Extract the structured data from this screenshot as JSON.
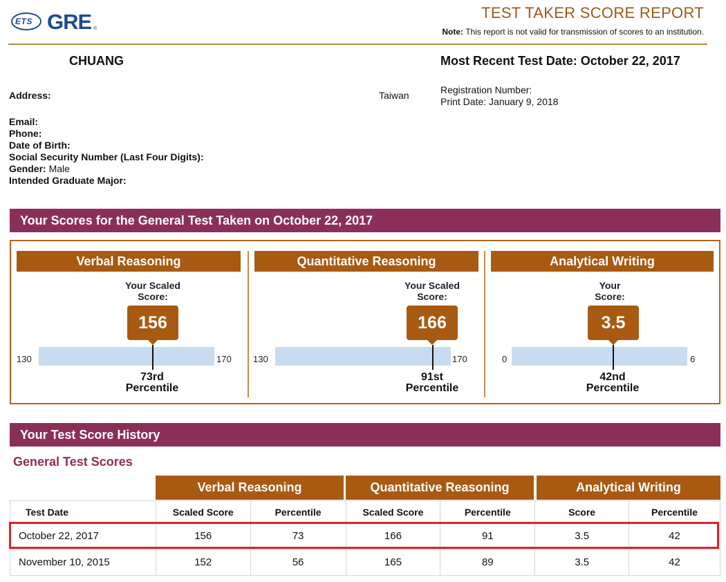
{
  "header": {
    "logo_ets": "ETS",
    "logo_gre": "GRE",
    "logo_tm": "®",
    "report_title": "TEST TAKER SCORE REPORT",
    "note_label": "Note:",
    "note_text": "This report is not valid for transmission of scores to an institution."
  },
  "candidate": {
    "name": "CHUANG",
    "recent_test": "Most Recent Test Date: October 22, 2017",
    "address_label": "Address:",
    "country": "Taiwan",
    "registration_label": "Registration Number:",
    "print_date": "Print Date: January 9, 2018",
    "email_label": "Email:",
    "phone_label": "Phone:",
    "dob_label": "Date of Birth:",
    "ssn_label": "Social Security Number (Last Four Digits):",
    "gender_label": "Gender:",
    "gender_value": "Male",
    "major_label": "Intended Graduate Major:"
  },
  "scores_section": {
    "title": "Your Scores for the General Test Taken on October 22, 2017",
    "panels": [
      {
        "heading": "Verbal Reasoning",
        "label_line1": "Your Scaled",
        "label_line2": "Score:",
        "score": "156",
        "min": "130",
        "max": "170",
        "score_value": 156,
        "min_value": 130,
        "max_value": 170,
        "percentile_line1": "73rd",
        "percentile_line2": "Percentile"
      },
      {
        "heading": "Quantitative Reasoning",
        "label_line1": "Your Scaled",
        "label_line2": "Score:",
        "score": "166",
        "min": "130",
        "max": "170",
        "score_value": 166,
        "min_value": 130,
        "max_value": 170,
        "percentile_line1": "91st",
        "percentile_line2": "Percentile"
      },
      {
        "heading": "Analytical Writing",
        "label_line1": "Your",
        "label_line2": "Score:",
        "score": "3.5",
        "min": "0",
        "max": "6",
        "score_value": 3.5,
        "min_value": 0,
        "max_value": 6,
        "percentile_line1": "42nd",
        "percentile_line2": "Percentile"
      }
    ]
  },
  "history_section": {
    "title": "Your Test Score History",
    "subtitle": "General Test Scores",
    "groups": [
      "Verbal Reasoning",
      "Quantitative Reasoning",
      "Analytical Writing"
    ],
    "columns": [
      "Test Date",
      "Scaled Score",
      "Percentile",
      "Scaled Score",
      "Percentile",
      "Score",
      "Percentile"
    ],
    "rows": [
      [
        "October 22, 2017",
        "156",
        "73",
        "166",
        "91",
        "3.5",
        "42"
      ],
      [
        "November 10, 2015",
        "152",
        "56",
        "165",
        "89",
        "3.5",
        "42"
      ]
    ]
  },
  "colors": {
    "brand_blue": "#1e4b8e",
    "section_purple": "#8b2f5a",
    "heading_brown": "#a85a12",
    "scale_blue": "#c7dcf0",
    "highlight_red": "#e0202a"
  }
}
